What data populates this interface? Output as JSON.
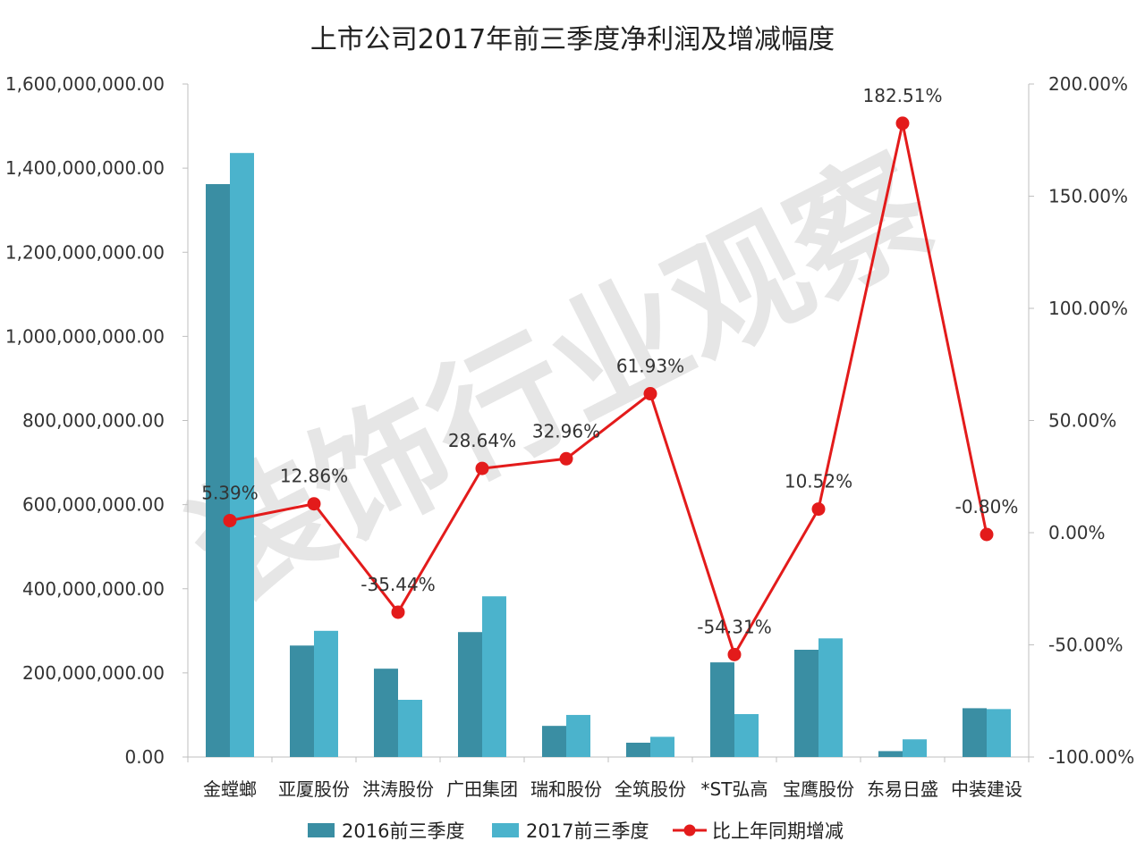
{
  "chart_data": {
    "type": "bar",
    "title": "上市公司2017年前三季度净利润及增减幅度",
    "categories": [
      "金螳螂",
      "亚厦股份",
      "洪涛股份",
      "广田集团",
      "瑞和股份",
      "全筑股份",
      "*ST弘高",
      "宝鹰股份",
      "东易日盛",
      "中装建设"
    ],
    "series": [
      {
        "name": "2016前三季度",
        "type": "bar",
        "axis": "left",
        "color": "#3a8ea3",
        "values": [
          1362000000,
          265000000,
          210000000,
          297000000,
          74000000,
          34000000,
          225000000,
          255000000,
          14000000,
          116000000
        ]
      },
      {
        "name": "2017前三季度",
        "type": "bar",
        "axis": "left",
        "color": "#4bb3cc",
        "values": [
          1436000000,
          300000000,
          136000000,
          382000000,
          100000000,
          48000000,
          102000000,
          282000000,
          42000000,
          114000000
        ]
      },
      {
        "name": "比上年同期增减",
        "type": "line",
        "axis": "right",
        "color": "#e31b1b",
        "values": [
          5.39,
          12.86,
          -35.44,
          28.64,
          32.96,
          61.93,
          -54.31,
          10.52,
          182.51,
          -0.8
        ],
        "labels": [
          "5.39%",
          "12.86%",
          "-35.44%",
          "28.64%",
          "32.96%",
          "61.93%",
          "-54.31%",
          "10.52%",
          "182.51%",
          "-0.80%"
        ]
      }
    ],
    "y_left": {
      "ylim": [
        0,
        1600000000
      ],
      "ticks": [
        0,
        200000000,
        400000000,
        600000000,
        800000000,
        1000000000,
        1200000000,
        1400000000,
        1600000000
      ],
      "tick_labels": [
        "0.00",
        "200,000,000.00",
        "400,000,000.00",
        "600,000,000.00",
        "800,000,000.00",
        "1,000,000,000.00",
        "1,200,000,000.00",
        "1,400,000,000.00",
        "1,600,000,000.00"
      ]
    },
    "y_right": {
      "ylim": [
        -100,
        200
      ],
      "ticks": [
        -100,
        -50,
        0,
        50,
        100,
        150,
        200
      ],
      "tick_labels": [
        "-100.00%",
        "-50.00%",
        "0.00%",
        "50.00%",
        "100.00%",
        "150.00%",
        "200.00%"
      ]
    },
    "grid": false,
    "legend_position": "bottom",
    "watermark": "装饰行业观察"
  }
}
